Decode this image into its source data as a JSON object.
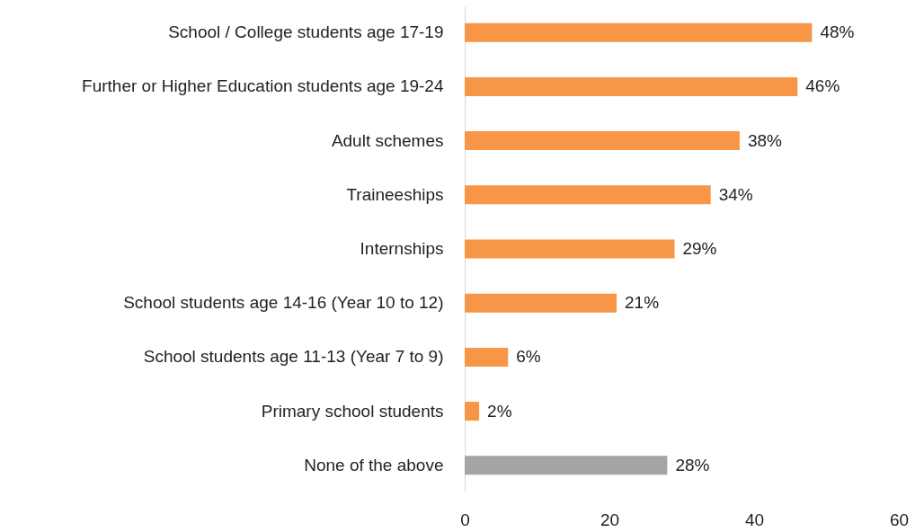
{
  "chart_data": {
    "type": "bar",
    "orientation": "horizontal",
    "categories": [
      "School / College students age 17-19",
      "Further or Higher Education students age 19-24",
      "Adult schemes",
      "Traineeships",
      "Internships",
      "School students age 14-16 (Year 10 to 12)",
      "School students age 11-13 (Year 7 to 9)",
      "Primary school students",
      "None of the above"
    ],
    "values": [
      48,
      46,
      38,
      34,
      29,
      21,
      6,
      2,
      28
    ],
    "colors": [
      "#f79646",
      "#f79646",
      "#f79646",
      "#f79646",
      "#f79646",
      "#f79646",
      "#f79646",
      "#f79646",
      "#a5a5a5"
    ],
    "value_labels": [
      "48%",
      "46%",
      "38%",
      "34%",
      "29%",
      "21%",
      "6%",
      "2%",
      "28%"
    ],
    "xlim": [
      0,
      60
    ],
    "xticks": [
      0,
      20,
      40,
      60
    ]
  }
}
